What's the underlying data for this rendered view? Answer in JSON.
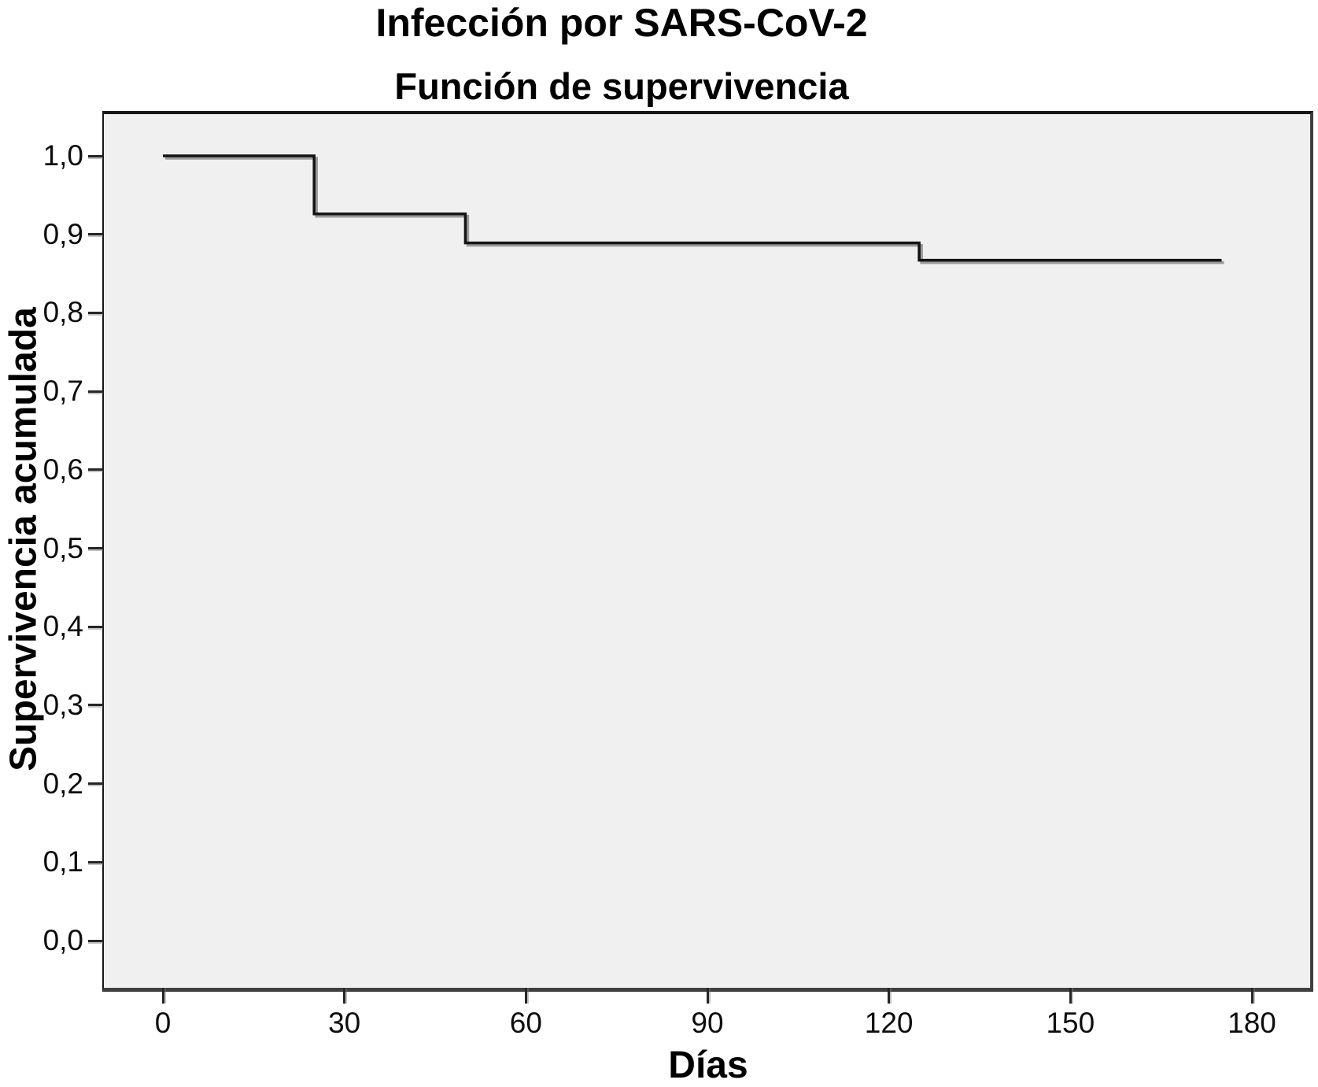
{
  "figure": {
    "title": "Infección por SARS-CoV-2",
    "subtitle": "Función de supervivencia"
  },
  "chart_data": {
    "type": "line",
    "subtype": "kaplan-meier-step-function",
    "title": "Infección por SARS-CoV-2",
    "subtitle": "Función de supervivencia",
    "xlabel": "Días",
    "ylabel": "Supervivencia acumulada",
    "xlim": [
      0,
      180
    ],
    "ylim": [
      0.0,
      1.0
    ],
    "xticks": [
      0,
      30,
      60,
      90,
      120,
      150,
      180
    ],
    "xtick_labels": [
      "0",
      "30",
      "60",
      "90",
      "120",
      "150",
      "180"
    ],
    "yticks": [
      1.0,
      0.9,
      0.8,
      0.7,
      0.6,
      0.5,
      0.4,
      0.3,
      0.2,
      0.1,
      0.0
    ],
    "ytick_labels": [
      "1,0",
      "0,9",
      "0,8",
      "0,7",
      "0,6",
      "0,5",
      "0,4",
      "0,3",
      "0,2",
      "0,1",
      "0,0"
    ],
    "grid": false,
    "legend": "none",
    "plot_background": "#f0f0f0",
    "line_color": "#141414",
    "line_shadow_color": "#9a9a9a",
    "series": [
      {
        "name": "Función de supervivencia",
        "points": [
          [
            0,
            1.0
          ],
          [
            25,
            1.0
          ],
          [
            25,
            0.926
          ],
          [
            50,
            0.926
          ],
          [
            50,
            0.889
          ],
          [
            125,
            0.889
          ],
          [
            125,
            0.867
          ],
          [
            175,
            0.867
          ]
        ]
      }
    ],
    "events": [
      {
        "day": 25,
        "survival_after": 0.926
      },
      {
        "day": 50,
        "survival_after": 0.889
      },
      {
        "day": 125,
        "survival_after": 0.867
      }
    ],
    "curve_end_day": 175
  }
}
